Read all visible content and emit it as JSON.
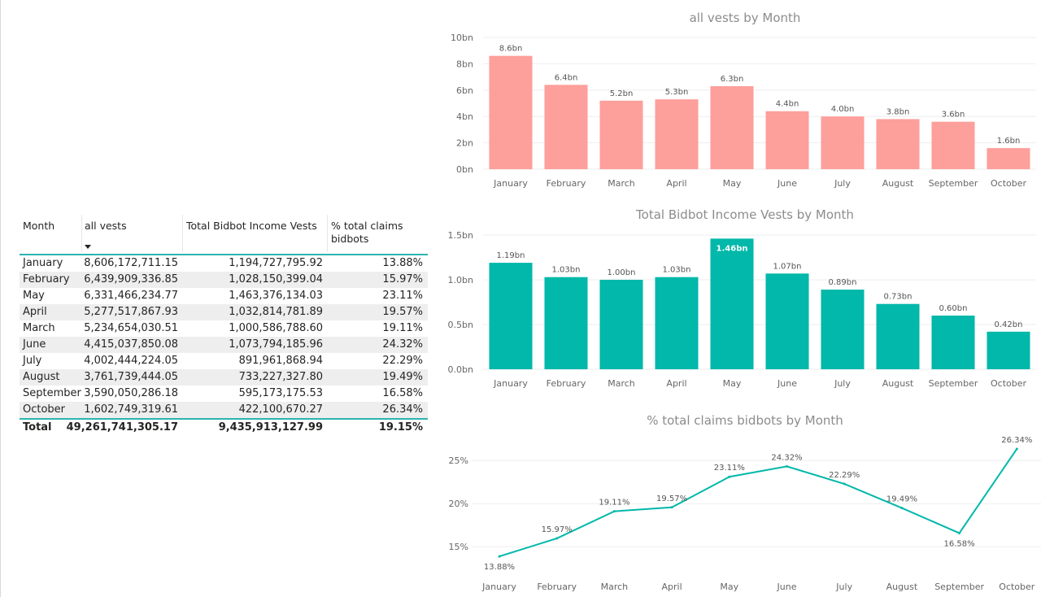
{
  "table": {
    "headers": [
      "Month",
      "all vests",
      "Total Bidbot Income Vests",
      "% total claims bidbots"
    ],
    "rows": [
      [
        "January",
        "8,606,172,711.15",
        "1,194,727,795.92",
        "13.88%"
      ],
      [
        "February",
        "6,439,909,336.85",
        "1,028,150,399.04",
        "15.97%"
      ],
      [
        "May",
        "6,331,466,234.77",
        "1,463,376,134.03",
        "23.11%"
      ],
      [
        "April",
        "5,277,517,867.93",
        "1,032,814,781.89",
        "19.57%"
      ],
      [
        "March",
        "5,234,654,030.51",
        "1,000,586,788.60",
        "19.11%"
      ],
      [
        "June",
        "4,415,037,850.08",
        "1,073,794,185.96",
        "24.32%"
      ],
      [
        "July",
        "4,002,444,224.05",
        "891,961,868.94",
        "22.29%"
      ],
      [
        "August",
        "3,761,739,444.05",
        "733,227,327.80",
        "19.49%"
      ],
      [
        "September",
        "3,590,050,286.18",
        "595,173,175.53",
        "16.58%"
      ],
      [
        "October",
        "1,602,749,319.61",
        "422,100,670.27",
        "26.34%"
      ]
    ],
    "total": [
      "Total",
      "49,261,741,305.17",
      "9,435,913,127.99",
      "19.15%"
    ]
  },
  "colors": {
    "bar1": "#fd9f9b",
    "bar2": "#01b8aa",
    "line": "#01b8aa",
    "accent": "#2bb5b0"
  },
  "chart_data": [
    {
      "type": "bar",
      "title": "all vests by Month",
      "categories": [
        "January",
        "February",
        "March",
        "April",
        "May",
        "June",
        "July",
        "August",
        "September",
        "October"
      ],
      "values": [
        8.6,
        6.4,
        5.2,
        5.3,
        6.3,
        4.4,
        4.0,
        3.8,
        3.6,
        1.6
      ],
      "data_labels": [
        "8.6bn",
        "6.4bn",
        "5.2bn",
        "5.3bn",
        "6.3bn",
        "4.4bn",
        "4.0bn",
        "3.8bn",
        "3.6bn",
        "1.6bn"
      ],
      "ylim": [
        0,
        10
      ],
      "yticks": [
        0,
        2,
        4,
        6,
        8,
        10
      ],
      "ytick_labels": [
        "0bn",
        "2bn",
        "4bn",
        "6bn",
        "8bn",
        "10bn"
      ],
      "grid": true
    },
    {
      "type": "bar",
      "title": "Total Bidbot Income Vests by Month",
      "categories": [
        "January",
        "February",
        "March",
        "April",
        "May",
        "June",
        "July",
        "August",
        "September",
        "October"
      ],
      "values": [
        1.19,
        1.03,
        1.0,
        1.03,
        1.46,
        1.07,
        0.89,
        0.73,
        0.6,
        0.42
      ],
      "data_labels": [
        "1.19bn",
        "1.03bn",
        "1.00bn",
        "1.03bn",
        "1.46bn",
        "1.07bn",
        "0.89bn",
        "0.73bn",
        "0.60bn",
        "0.42bn"
      ],
      "highlight_index": 4,
      "ylim": [
        0,
        1.5
      ],
      "yticks": [
        0,
        0.5,
        1.0,
        1.5
      ],
      "ytick_labels": [
        "0.0bn",
        "0.5bn",
        "1.0bn",
        "1.5bn"
      ],
      "grid": true
    },
    {
      "type": "line",
      "title": "% total claims bidbots by Month",
      "categories": [
        "January",
        "February",
        "March",
        "April",
        "May",
        "June",
        "July",
        "August",
        "September",
        "October"
      ],
      "values": [
        13.88,
        15.97,
        19.11,
        19.57,
        23.11,
        24.32,
        22.29,
        19.49,
        16.58,
        26.34
      ],
      "data_labels": [
        "13.88%",
        "15.97%",
        "19.11%",
        "19.57%",
        "23.11%",
        "24.32%",
        "22.29%",
        "19.49%",
        "16.58%",
        "26.34%"
      ],
      "ylim": [
        12,
        27
      ],
      "yticks": [
        15,
        20,
        25
      ],
      "ytick_labels": [
        "15%",
        "20%",
        "25%"
      ],
      "grid": true
    }
  ]
}
